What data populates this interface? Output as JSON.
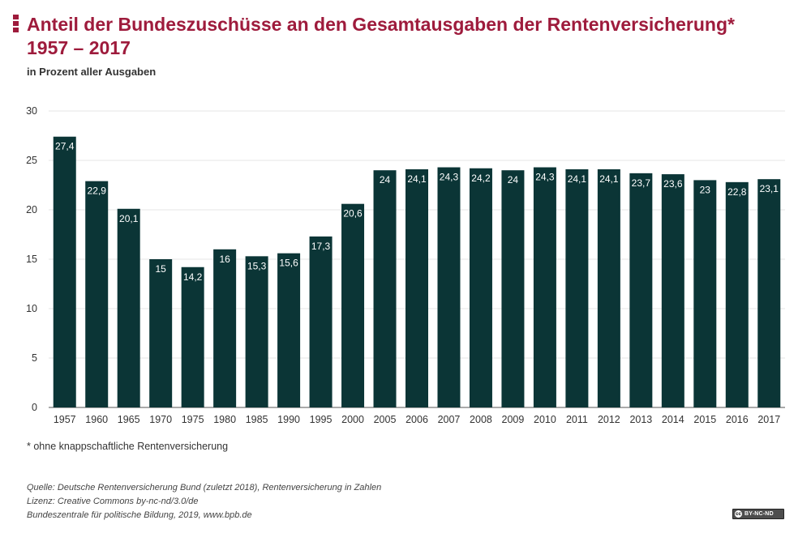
{
  "header": {
    "title_line1": "Anteil der Bundeszuschüsse an den Gesamtausgaben der Rentenversicherung*",
    "title_line2": "1957 – 2017",
    "subtitle": "in Prozent aller Ausgaben"
  },
  "chart_data": {
    "type": "bar",
    "title": "Anteil der Bundeszuschüsse an den Gesamtausgaben der Rentenversicherung* 1957 – 2017",
    "subtitle": "in Prozent aller Ausgaben",
    "categories": [
      "1957",
      "1960",
      "1965",
      "1970",
      "1975",
      "1980",
      "1985",
      "1990",
      "1995",
      "2000",
      "2005",
      "2006",
      "2007",
      "2008",
      "2009",
      "2010",
      "2011",
      "2012",
      "2013",
      "2014",
      "2015",
      "2016",
      "2017"
    ],
    "values": [
      27.4,
      22.9,
      20.1,
      15,
      14.2,
      16,
      15.3,
      15.6,
      17.3,
      20.6,
      24,
      24.1,
      24.3,
      24.2,
      24,
      24.3,
      24.1,
      24.1,
      23.7,
      23.6,
      23,
      22.8,
      23.1
    ],
    "value_labels": [
      "27,4",
      "22,9",
      "20,1",
      "15",
      "14,2",
      "16",
      "15,3",
      "15,6",
      "17,3",
      "20,6",
      "24",
      "24,1",
      "24,3",
      "24,2",
      "24",
      "24,3",
      "24,1",
      "24,1",
      "23,7",
      "23,6",
      "23",
      "22,8",
      "23,1"
    ],
    "yticks": [
      "0",
      "5",
      "10",
      "15",
      "20",
      "25",
      "30"
    ],
    "ylim": [
      0,
      30
    ],
    "grid": true,
    "bar_color": "#0b3536",
    "label_color": "#ffffff"
  },
  "footnote": "* ohne knappschaftliche Rentenversicherung",
  "source": {
    "line1": "Quelle: Deutsche Rentenversicherung Bund (zuletzt 2018), Rentenversicherung in Zahlen",
    "line2": "Lizenz: Creative Commons by-nc-nd/3.0/de",
    "line3": "Bundeszentrale für politische Bildung, 2019, www.bpb.de"
  },
  "license_badge": {
    "cc": "cc",
    "text": "BY-NC-ND"
  },
  "colors": {
    "accent": "#9e1b3c",
    "bar": "#0b3536",
    "grid": "#e6e6e6"
  }
}
